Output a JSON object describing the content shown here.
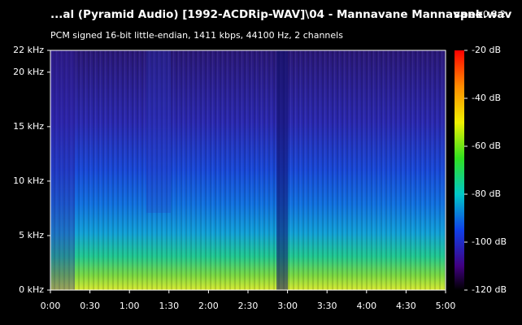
{
  "chart_data": {
    "type": "spectrogram",
    "title": "...al (Pyramid Audio) [1992-ACDRip-WAV]\\04 - Mannavane Mannavane.wav",
    "app_name": "spek",
    "app_version": "0.8.2",
    "subtitle": "PCM signed 16-bit little-endian, 1411 kbps, 44100 Hz, 2 channels",
    "xlim": [
      0,
      300
    ],
    "xticks": [
      {
        "value": 0,
        "label": "0:00"
      },
      {
        "value": 30,
        "label": "0:30"
      },
      {
        "value": 60,
        "label": "1:00"
      },
      {
        "value": 90,
        "label": "1:30"
      },
      {
        "value": 120,
        "label": "2:00"
      },
      {
        "value": 150,
        "label": "2:30"
      },
      {
        "value": 180,
        "label": "3:00"
      },
      {
        "value": 210,
        "label": "3:30"
      },
      {
        "value": 240,
        "label": "4:00"
      },
      {
        "value": 270,
        "label": "4:30"
      },
      {
        "value": 300,
        "label": "5:00"
      }
    ],
    "ylim": [
      0,
      22
    ],
    "yticks": [
      {
        "value": 0,
        "label": "0 kHz"
      },
      {
        "value": 5,
        "label": "5 kHz"
      },
      {
        "value": 10,
        "label": "10 kHz"
      },
      {
        "value": 15,
        "label": "15 kHz"
      },
      {
        "value": 20,
        "label": "20 kHz"
      },
      {
        "value": 22,
        "label": "22 kHz"
      }
    ],
    "zlim": [
      -120,
      -20
    ],
    "zticks": [
      {
        "value": -20,
        "label": "-20 dB"
      },
      {
        "value": -40,
        "label": "-40 dB"
      },
      {
        "value": -60,
        "label": "-60 dB"
      },
      {
        "value": -80,
        "label": "-80 dB"
      },
      {
        "value": -100,
        "label": "-100 dB"
      },
      {
        "value": -120,
        "label": "-120 dB"
      }
    ]
  }
}
